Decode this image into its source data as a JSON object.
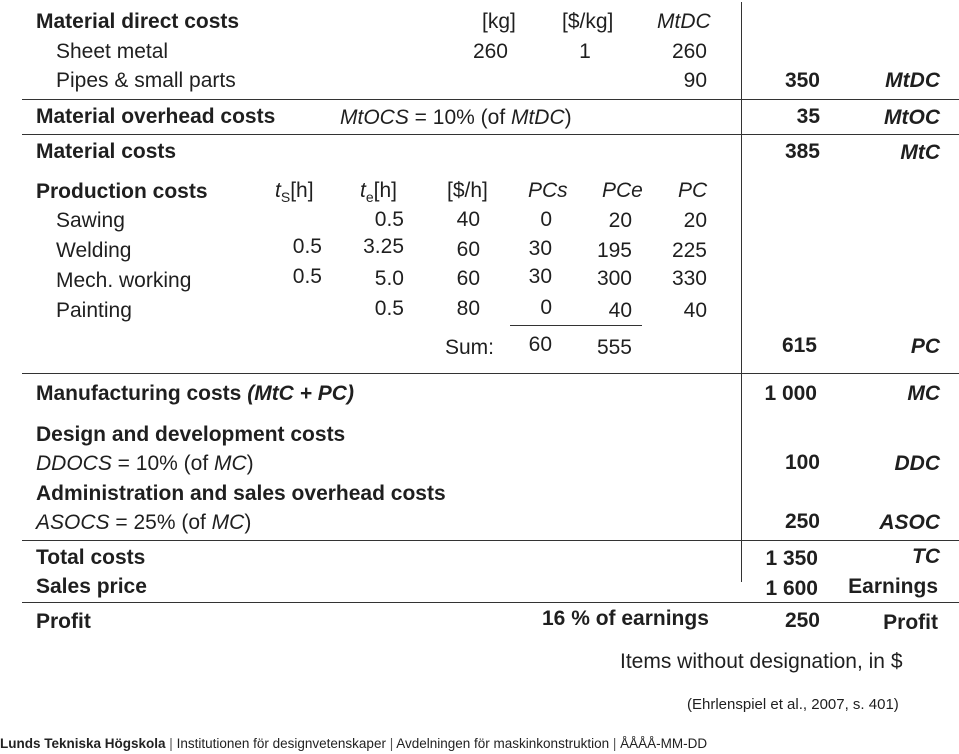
{
  "material_direct": {
    "title": "Material direct costs",
    "col_kg": "[kg]",
    "col_usd_kg": "[$/kg]",
    "col_mtdc": "MtDC",
    "sheet_metal": {
      "label": "Sheet metal",
      "kg": "260",
      "usd_kg": "1",
      "mtdc": "260"
    },
    "pipes": {
      "label": "Pipes & small parts",
      "mtdc": "90"
    },
    "total": "350",
    "abbr": "MtDC"
  },
  "material_overhead": {
    "title": "Material overhead costs",
    "formula_sym": "MtOCS",
    "formula_mid": " = 10% (of ",
    "formula_ref": "MtDC",
    "formula_end": ")",
    "total": "35",
    "abbr": "MtOC"
  },
  "material_costs": {
    "title": "Material costs",
    "total": "385",
    "abbr": "MtC"
  },
  "production": {
    "title": "Production costs",
    "col_ts_t": "t",
    "col_ts_sub": "S",
    "col_ts_unit": "[h]",
    "col_te_t": "t",
    "col_te_sub": "e",
    "col_te_unit": "[h]",
    "col_rate": "[$/h]",
    "col_pcs": "PCs",
    "col_pce": "PCe",
    "col_pc": "PC",
    "rows": [
      {
        "label": "Sawing",
        "ts": "",
        "te": "0.5",
        "rate": "40",
        "pcs": "0",
        "pce": "20",
        "pc": "20"
      },
      {
        "label": "Welding",
        "ts": "0.5",
        "te": "3.25",
        "rate": "60",
        "pcs": "30",
        "pce": "195",
        "pc": "225"
      },
      {
        "label": "Mech. working",
        "ts": "0.5",
        "te": "5.0",
        "rate": "60",
        "pcs": "30",
        "pce": "300",
        "pc": "330"
      },
      {
        "label": "Painting",
        "ts": "",
        "te": "0.5",
        "rate": "80",
        "pcs": "0",
        "pce": "40",
        "pc": "40"
      }
    ],
    "sum_label": "Sum:",
    "sum_pcs": "60",
    "sum_pce": "555",
    "total": "615",
    "abbr": "PC"
  },
  "manufacturing": {
    "title_plain": "Manufacturing costs ",
    "title_italic": "(MtC + PC)",
    "total": "1 000",
    "abbr": "MC"
  },
  "design": {
    "title": "Design and development costs",
    "formula_sym": "DDOCS",
    "formula_mid": " = 10% (of ",
    "formula_ref": "MC",
    "formula_end": ")",
    "total": "100",
    "abbr": "DDC"
  },
  "admin": {
    "title": "Administration and sales overhead costs",
    "formula_sym": "ASOCS",
    "formula_mid": " = 25% (of ",
    "formula_ref": "MC",
    "formula_end": ")",
    "total": "250",
    "abbr": "ASOC"
  },
  "total_costs": {
    "title": "Total costs",
    "total": "1 350",
    "abbr": "TC"
  },
  "sales_price": {
    "title": "Sales price",
    "total": "1 600",
    "abbr": "Earnings"
  },
  "profit": {
    "title": "Profit",
    "note": "16 % of earnings",
    "total": "250",
    "abbr": "Profit"
  },
  "note": "Items without designation, in $",
  "citation": "(Ehrlenspiel et al., 2007, s. 401)",
  "footer": {
    "school": "Lunds Tekniska Högskola",
    "sep": " | ",
    "institution": "Institutionen för designvetenskaper",
    "division": "Avdelningen för maskinkonstruktion",
    "code": "ÅÅÅÅ-MM-DD"
  }
}
